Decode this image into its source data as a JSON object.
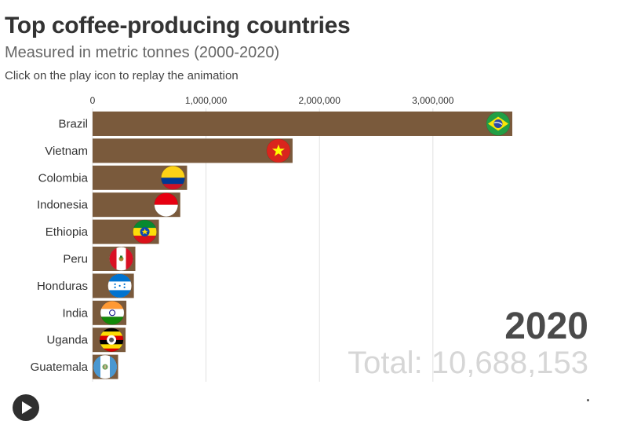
{
  "header": {
    "title": "Top coffee-producing countries",
    "subtitle": "Measured in metric tonnes (2000-2020)",
    "instruction": "Click on the play icon to replay the animation"
  },
  "overlay": {
    "year": "2020",
    "total": "Total: 10,688,153"
  },
  "colors": {
    "bar": "#7a5a3c",
    "grid": "#e0e0e0"
  },
  "chart_data": {
    "type": "bar",
    "orientation": "horizontal",
    "title": "Top coffee-producing countries",
    "subtitle": "Measured in metric tonnes (2000-2020)",
    "xlim": [
      0,
      3700000
    ],
    "x_ticks": [
      0,
      1000000,
      2000000,
      3000000
    ],
    "x_tick_labels": [
      "0",
      "1,000,000",
      "2,000,000",
      "3,000,000"
    ],
    "grid": true,
    "categories": [
      "Brazil",
      "Vietnam",
      "Colombia",
      "Indonesia",
      "Ethiopia",
      "Peru",
      "Honduras",
      "India",
      "Uganda",
      "Guatemala"
    ],
    "values": [
      3700000,
      1763000,
      833000,
      773000,
      585000,
      377000,
      364000,
      298000,
      291000,
      225000
    ],
    "flags": [
      "brazil-flag-icon",
      "vietnam-flag-icon",
      "colombia-flag-icon",
      "indonesia-flag-icon",
      "ethiopia-flag-icon",
      "peru-flag-icon",
      "honduras-flag-icon",
      "india-flag-icon",
      "uganda-flag-icon",
      "guatemala-flag-icon"
    ]
  }
}
